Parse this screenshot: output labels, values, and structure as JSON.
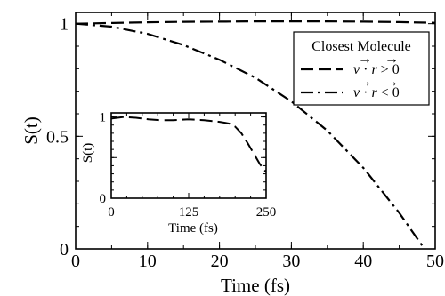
{
  "chart_data": [
    {
      "type": "line",
      "title": "",
      "xlabel": "Time (fs)",
      "ylabel": "S(t)",
      "xlim": [
        0,
        50
      ],
      "ylim": [
        0,
        1.05
      ],
      "x_ticks": [
        0,
        10,
        20,
        30,
        40,
        50
      ],
      "y_ticks": [
        0,
        0.5,
        1
      ],
      "y_tick_labels": [
        "0",
        "0.5",
        "1"
      ],
      "legend": {
        "title": "Closest Molecule",
        "placement": "top-right"
      },
      "series": [
        {
          "name": "v · r > 0",
          "name_parts": {
            "v": "v",
            "dot": "·",
            "r": "r",
            "rel": "> 0"
          },
          "style": "dashed",
          "x": [
            0,
            5,
            10,
            15,
            20,
            25,
            30,
            35,
            40,
            45,
            50
          ],
          "y": [
            1.0,
            1.003,
            1.006,
            1.008,
            1.009,
            1.01,
            1.01,
            1.01,
            1.009,
            1.007,
            1.004
          ]
        },
        {
          "name": "v · r < 0",
          "name_parts": {
            "v": "v",
            "dot": "·",
            "r": "r",
            "rel": "< 0"
          },
          "style": "dash-dot",
          "x": [
            0,
            5,
            10,
            15,
            20,
            25,
            30,
            35,
            40,
            45,
            48.5
          ],
          "y": [
            1.0,
            0.987,
            0.955,
            0.905,
            0.84,
            0.76,
            0.655,
            0.525,
            0.36,
            0.16,
            0.0
          ]
        }
      ]
    },
    {
      "type": "line",
      "title": "",
      "xlabel": "Time (fs)",
      "ylabel": "S(t)",
      "xlim": [
        0,
        250
      ],
      "ylim": [
        0,
        1.05
      ],
      "x_ticks": [
        0,
        125,
        250
      ],
      "y_ticks": [
        0,
        0.5,
        1
      ],
      "y_tick_labels": [
        "0",
        "",
        "1"
      ],
      "series": [
        {
          "style": "dashed",
          "x": [
            0,
            20,
            40,
            60,
            80,
            100,
            125,
            150,
            175,
            190,
            200,
            210,
            220,
            230,
            240,
            250
          ],
          "y": [
            0.98,
            1.0,
            0.99,
            0.97,
            0.96,
            0.96,
            0.97,
            0.96,
            0.94,
            0.92,
            0.88,
            0.8,
            0.68,
            0.55,
            0.42,
            0.32
          ]
        }
      ]
    }
  ]
}
